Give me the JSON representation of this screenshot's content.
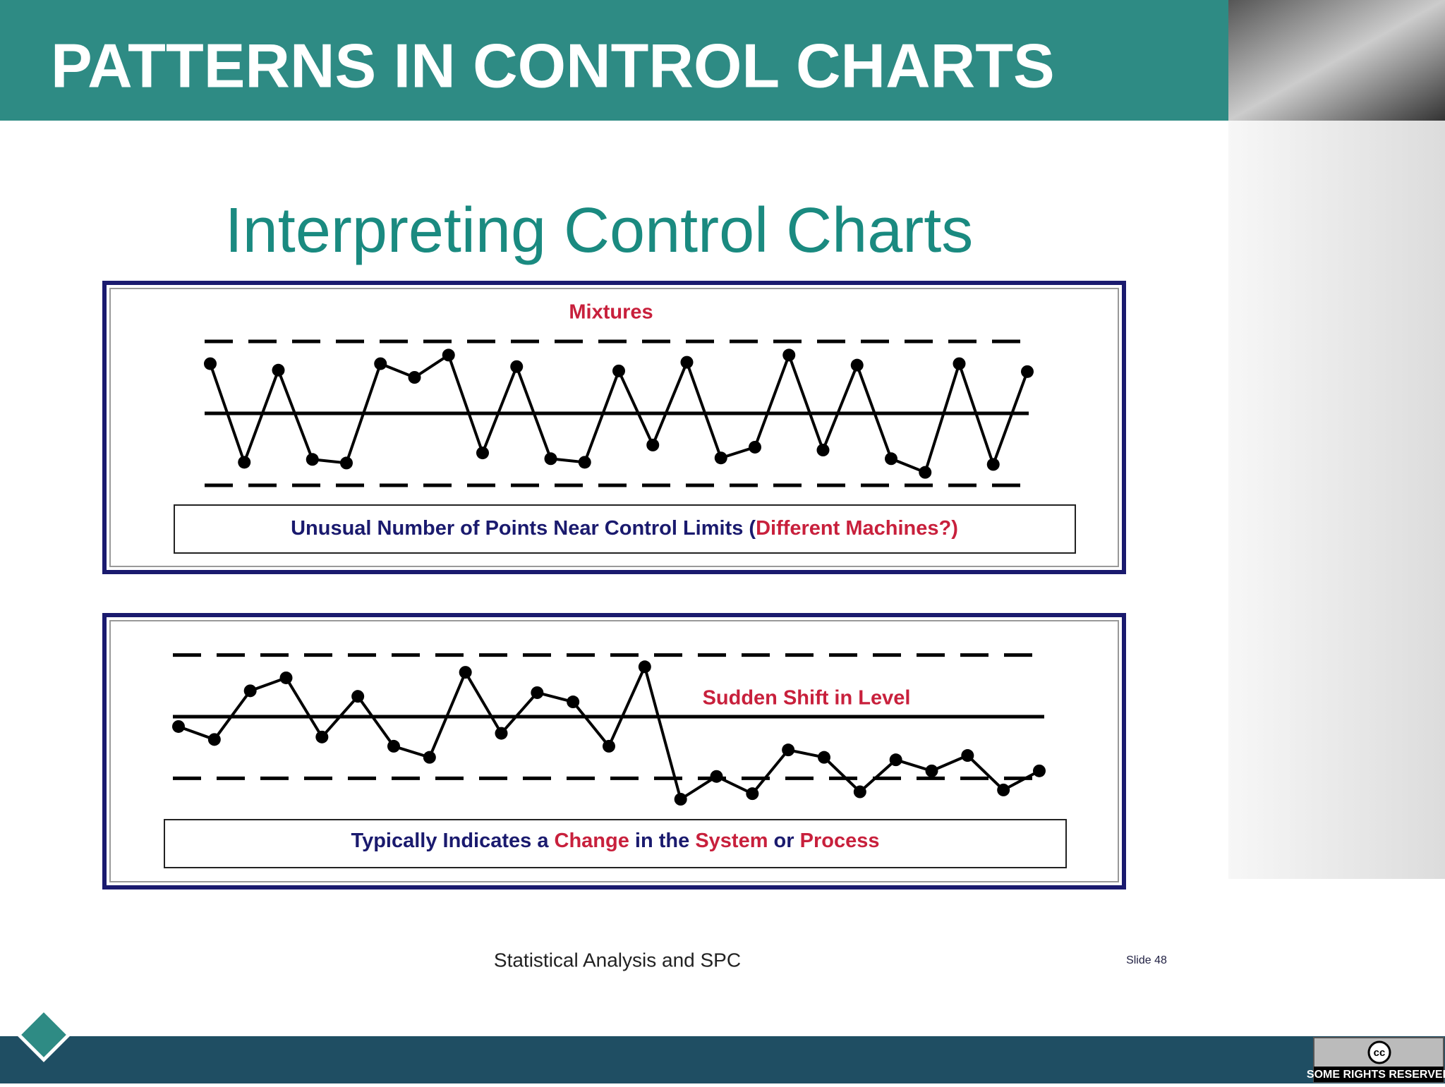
{
  "header": {
    "title": "PATTERNS IN CONTROL CHARTS"
  },
  "slide": {
    "title": "Interpreting Control Charts",
    "footer": "Statistical Analysis and SPC",
    "slide_number": "Slide 48"
  },
  "chart_data": [
    {
      "type": "line",
      "title": "Mixtures",
      "color": "#000000",
      "values": [
        0.69,
        -0.68,
        0.6,
        -0.64,
        -0.69,
        0.69,
        0.5,
        0.81,
        -0.55,
        0.65,
        -0.63,
        -0.68,
        0.59,
        -0.44,
        0.71,
        -0.62,
        -0.47,
        0.81,
        -0.51,
        0.67,
        -0.63,
        -0.82,
        0.69,
        -0.71,
        0.58
      ],
      "control_limits": [
        -1,
        0,
        1
      ],
      "ylim": [
        -1.5,
        1.5
      ],
      "caption": [
        {
          "text": "Unusual Number of Points Near Control Limits (",
          "color": "#1a1a6e"
        },
        {
          "text": "Different Machines?)",
          "color": "#c8203c"
        }
      ]
    },
    {
      "type": "line",
      "annotation": "Sudden Shift in Level",
      "color": "#000000",
      "values": [
        -0.16,
        -0.37,
        0.42,
        0.63,
        -0.33,
        0.33,
        -0.48,
        -0.66,
        0.72,
        -0.27,
        0.39,
        0.24,
        -0.48,
        0.81,
        -1.34,
        -0.97,
        -1.25,
        -0.54,
        -0.66,
        -1.22,
        -0.7,
        -0.88,
        -0.63,
        -1.19,
        -0.88
      ],
      "control_limits": [
        -1,
        0,
        1
      ],
      "ylim": [
        -1.5,
        1.5
      ],
      "caption": [
        {
          "text": "Typically Indicates a ",
          "color": "#1a1a6e"
        },
        {
          "text": "Change",
          "color": "#c8203c"
        },
        {
          "text": " in the ",
          "color": "#1a1a6e"
        },
        {
          "text": "System",
          "color": "#c8203c"
        },
        {
          "text": " or ",
          "color": "#1a1a6e"
        },
        {
          "text": "Process",
          "color": "#c8203c"
        }
      ]
    }
  ],
  "badge": {
    "icon": "cc",
    "text": "SOME RIGHTS RESERVED"
  }
}
